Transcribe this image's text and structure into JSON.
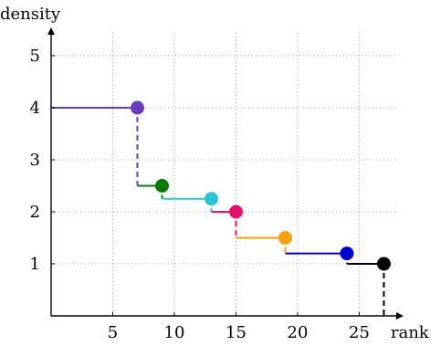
{
  "chart_data": {
    "type": "line",
    "xlabel": "rank",
    "ylabel": "density",
    "xlim": [
      0,
      28.5
    ],
    "ylim": [
      0,
      5.5
    ],
    "x_ticks": [
      5,
      10,
      15,
      20,
      25
    ],
    "y_ticks": [
      1,
      2,
      3,
      4,
      5
    ],
    "grid": true,
    "steps": [
      {
        "x_start": 0,
        "x_end": 7,
        "y": 4,
        "drop_to": 2.5,
        "color": "#6a3db8"
      },
      {
        "x_start": 7,
        "x_end": 9,
        "y": 2.5,
        "drop_to": 2.25,
        "color": "#0a7a0a"
      },
      {
        "x_start": 9,
        "x_end": 13,
        "y": 2.25,
        "drop_to": 2.0,
        "color": "#2ec4d6"
      },
      {
        "x_start": 13,
        "x_end": 15,
        "y": 2.0,
        "drop_to": 1.5,
        "color": "#e0136e"
      },
      {
        "x_start": 15,
        "x_end": 19,
        "y": 1.5,
        "drop_to": 1.2,
        "color": "#f5a30a"
      },
      {
        "x_start": 19,
        "x_end": 24,
        "y": 1.2,
        "drop_to": 1.0,
        "color": "#0000cc"
      },
      {
        "x_start": 24,
        "x_end": 27,
        "y": 1.0,
        "drop_to": 0,
        "color": "#000000"
      }
    ]
  }
}
